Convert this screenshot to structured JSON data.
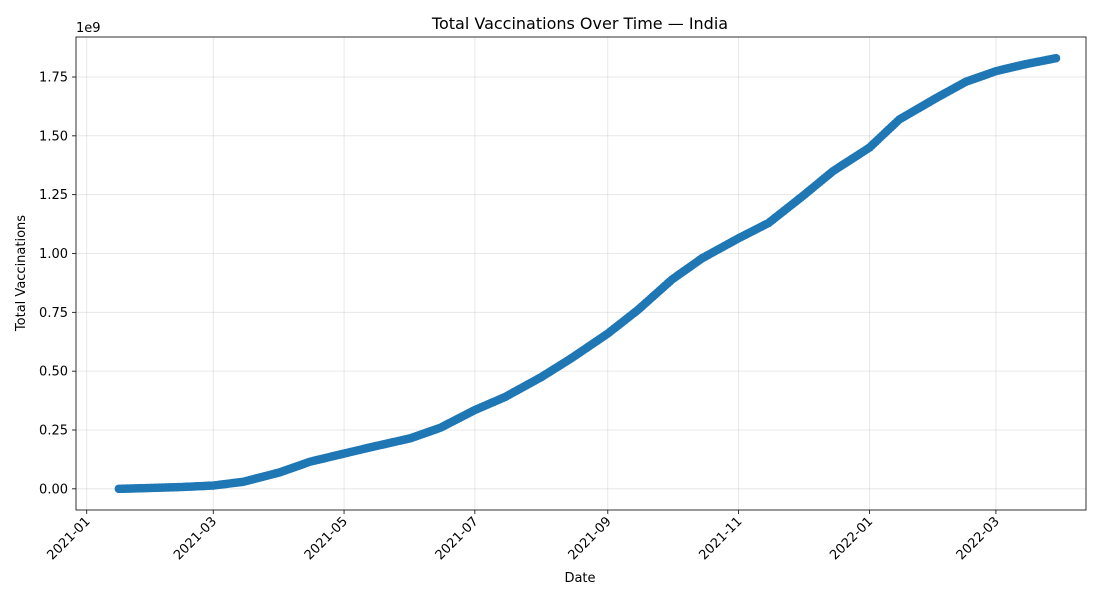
{
  "chart_data": {
    "type": "scatter",
    "title": "Total Vaccinations Over Time — India",
    "xlabel": "Date",
    "ylabel": "Total Vaccinations",
    "y_offset_label": "1e9",
    "xlim": [
      "2020-12-27",
      "2022-04-12"
    ],
    "ylim": [
      -0.09,
      1.92
    ],
    "y_scale_factor": 1000000000,
    "x_ticks": [
      "2021-01",
      "2021-03",
      "2021-05",
      "2021-07",
      "2021-09",
      "2021-11",
      "2022-01",
      "2022-03"
    ],
    "x_tick_dates": [
      "2021-01-01",
      "2021-03-01",
      "2021-05-01",
      "2021-07-01",
      "2021-09-01",
      "2021-11-01",
      "2022-01-01",
      "2022-03-01"
    ],
    "y_ticks": [
      "0.00",
      "0.25",
      "0.50",
      "0.75",
      "1.00",
      "1.25",
      "1.50",
      "1.75"
    ],
    "grid": true,
    "series": [
      {
        "color": "#1f77b4",
        "x": [
          "2021-01-16",
          "2021-02-01",
          "2021-02-15",
          "2021-03-01",
          "2021-03-15",
          "2021-04-01",
          "2021-04-15",
          "2021-05-01",
          "2021-05-15",
          "2021-06-01",
          "2021-06-15",
          "2021-07-01",
          "2021-07-15",
          "2021-08-01",
          "2021-08-15",
          "2021-09-01",
          "2021-09-15",
          "2021-10-01",
          "2021-10-15",
          "2021-11-01",
          "2021-11-15",
          "2021-12-01",
          "2021-12-15",
          "2022-01-01",
          "2022-01-15",
          "2022-02-01",
          "2022-02-15",
          "2022-03-01",
          "2022-03-15",
          "2022-03-29"
        ],
        "y": [
          0.0,
          0.004,
          0.008,
          0.014,
          0.03,
          0.07,
          0.115,
          0.15,
          0.18,
          0.215,
          0.26,
          0.335,
          0.39,
          0.475,
          0.555,
          0.66,
          0.76,
          0.89,
          0.98,
          1.065,
          1.13,
          1.245,
          1.35,
          1.45,
          1.57,
          1.66,
          1.73,
          1.775,
          1.805,
          1.83
        ]
      }
    ]
  }
}
